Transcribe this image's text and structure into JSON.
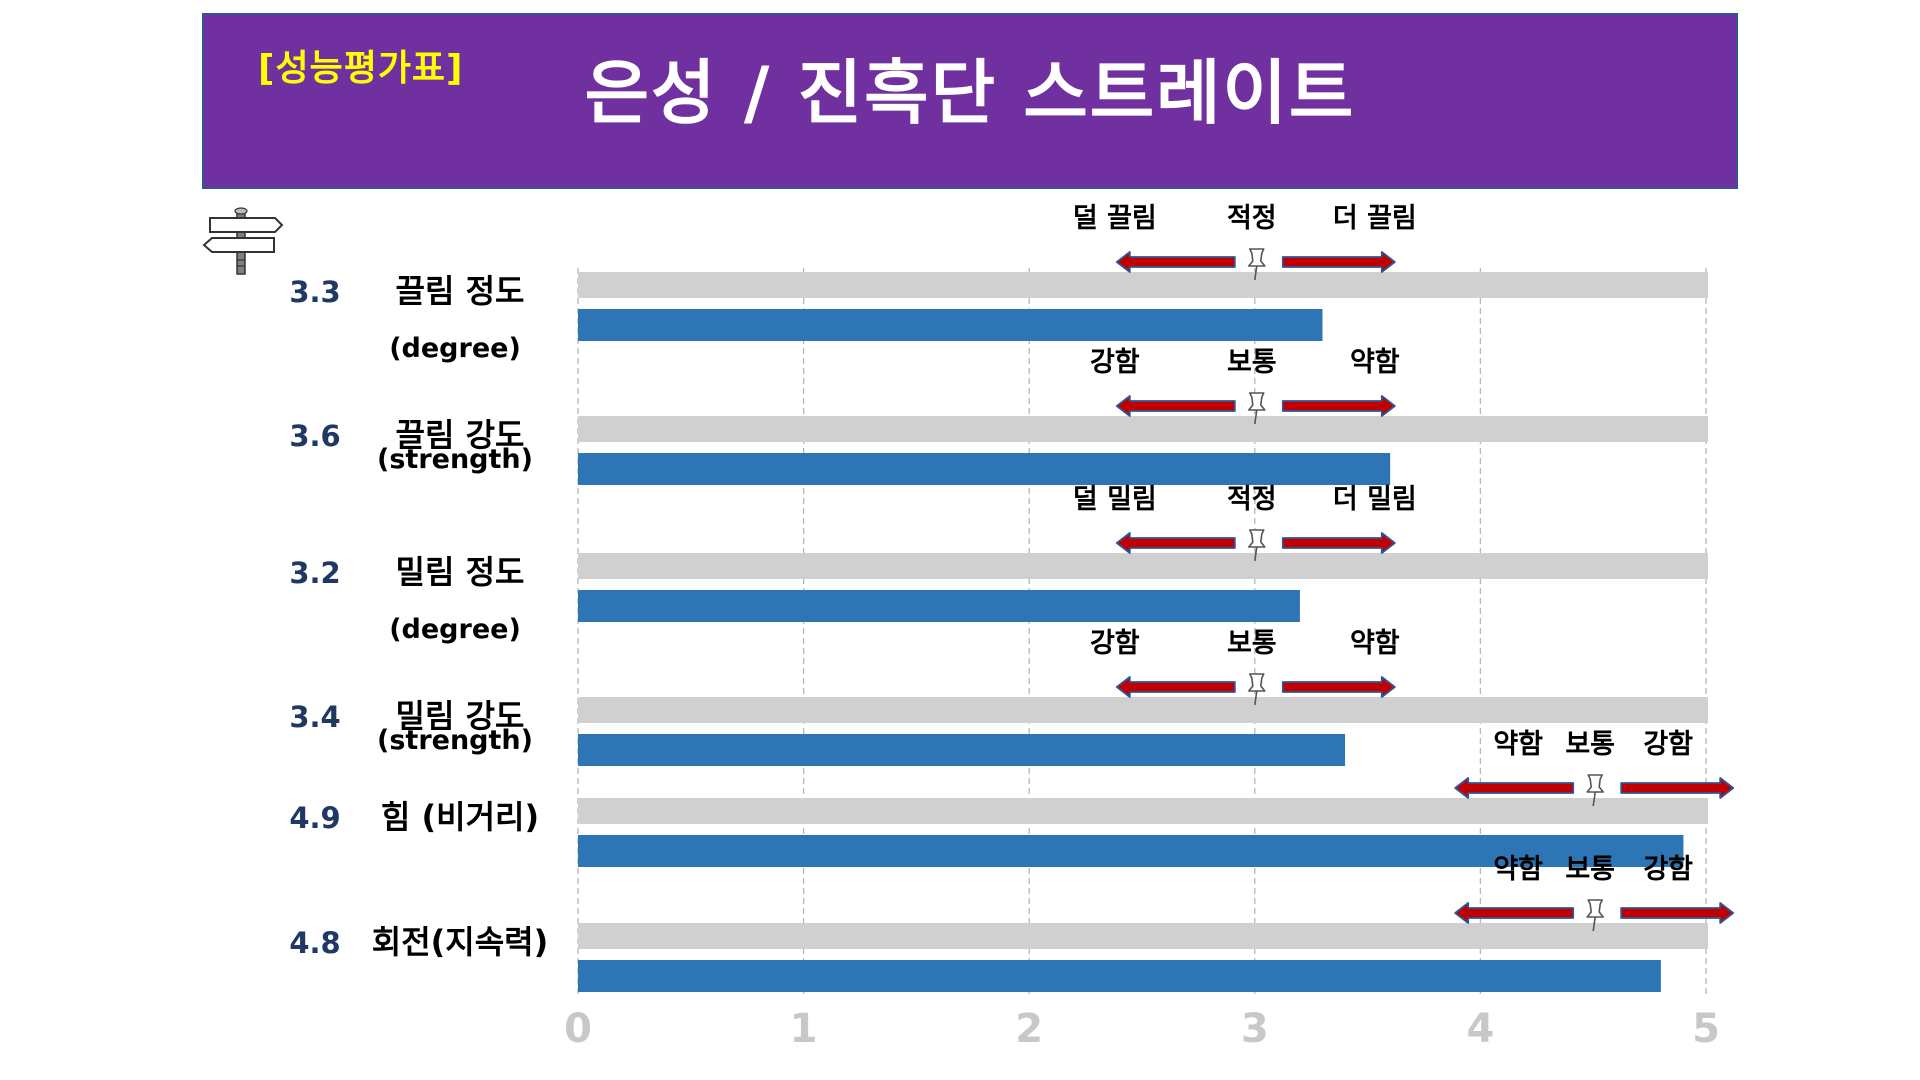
{
  "header": {
    "tag": "[성능평가표]",
    "title": "은성 / 진흑단 스트레이트"
  },
  "colors": {
    "header_bg": "#7030a0",
    "header_tag": "#ffff00",
    "bar": "#2e75b6",
    "track": "#d0d0d0",
    "score": "#1f3864",
    "arrow": "#c00000",
    "arrow_outline": "#2f5597",
    "axis_tick": "#c8c8c8"
  },
  "icons": {
    "signpost": "signpost-icon",
    "pushpin": "pushpin-icon"
  },
  "chart_data": {
    "type": "bar",
    "orientation": "horizontal",
    "xlim": [
      0,
      5
    ],
    "x_ticks": [
      "0",
      "1",
      "2",
      "3",
      "4",
      "5"
    ],
    "grid": "vertical dashed",
    "items": [
      {
        "score": "3.3",
        "label": "끌림 정도",
        "sublabel": "(degree)",
        "value": 3.3,
        "scale": {
          "left": "덜 끌림",
          "center": "적정",
          "right": "더 끌림",
          "center_value": 3
        }
      },
      {
        "score": "3.6",
        "label": "끌림 강도",
        "sublabel": "(strength)",
        "value": 3.6,
        "scale": {
          "left": "강함",
          "center": "보통",
          "right": "약함",
          "center_value": 3
        }
      },
      {
        "score": "3.2",
        "label": "밀림 정도",
        "sublabel": "(degree)",
        "value": 3.2,
        "scale": {
          "left": "덜 밀림",
          "center": "적정",
          "right": "더 밀림",
          "center_value": 3
        }
      },
      {
        "score": "3.4",
        "label": "밀림 강도",
        "sublabel": "(strength)",
        "value": 3.4,
        "scale": {
          "left": "강함",
          "center": "보통",
          "right": "약함",
          "center_value": 3
        }
      },
      {
        "score": "4.9",
        "label": "힘 (비거리)",
        "sublabel": "",
        "value": 4.9,
        "scale": {
          "left": "약함",
          "center": "보통",
          "right": "강함",
          "center_value": 4.5
        }
      },
      {
        "score": "4.8",
        "label": "회전(지속력)",
        "sublabel": "",
        "value": 4.8,
        "scale": {
          "left": "약함",
          "center": "보통",
          "right": "강함",
          "center_value": 4.5
        }
      }
    ]
  }
}
